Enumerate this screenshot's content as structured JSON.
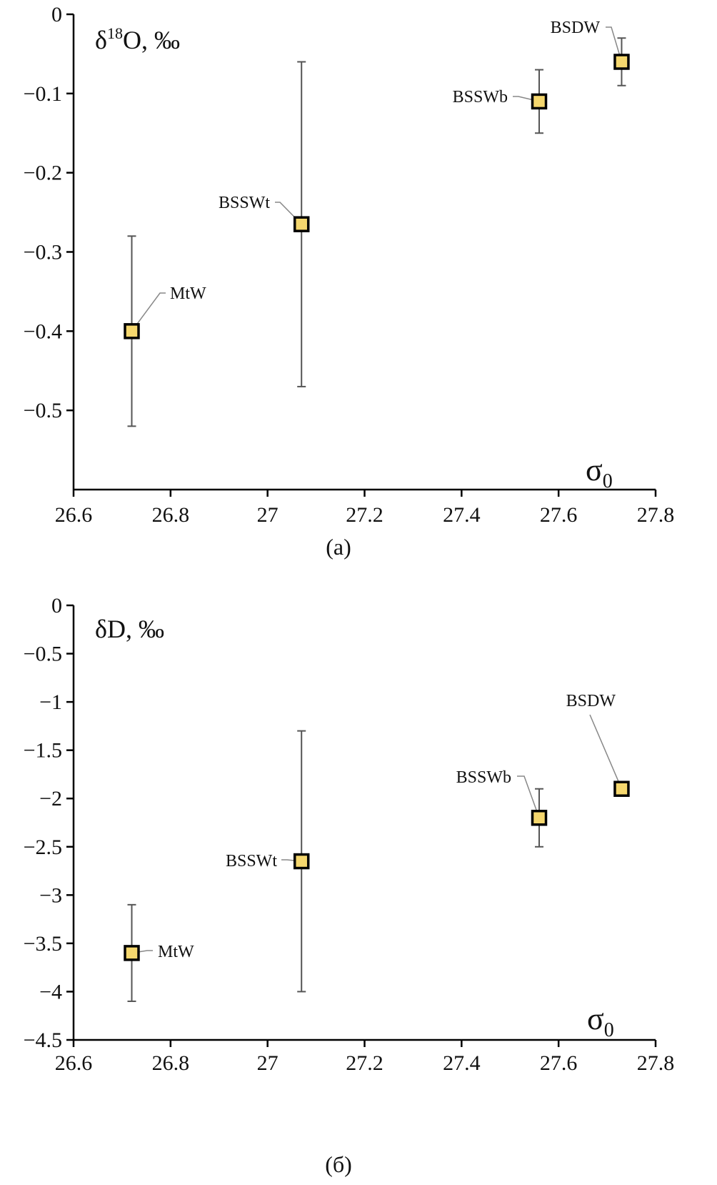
{
  "chart_data": [
    {
      "type": "scatter",
      "caption": "(a)",
      "ylabel_main": "δ",
      "ylabel_sup": "18",
      "ylabel_rest": "O, ‰",
      "xlabel_main": "σ",
      "xlabel_sub": "0",
      "xlim": [
        26.6,
        27.8
      ],
      "ylim": [
        -0.6,
        0
      ],
      "x_ticks": [
        26.6,
        26.8,
        27,
        27.2,
        27.4,
        27.6,
        27.8
      ],
      "x_tick_labels": [
        "26.6",
        "26.8",
        "27",
        "27.2",
        "27.4",
        "27.6",
        "27.8"
      ],
      "y_ticks": [
        0,
        -0.1,
        -0.2,
        -0.3,
        -0.4,
        -0.5
      ],
      "y_tick_labels": [
        "0",
        "−0.1",
        "−0.2",
        "−0.3",
        "−0.4",
        "−0.5"
      ],
      "points": [
        {
          "label": "MtW",
          "x": 26.72,
          "y": -0.4,
          "err_low": -0.52,
          "err_high": -0.28
        },
        {
          "label": "BSSWt",
          "x": 27.07,
          "y": -0.265,
          "err_low": -0.47,
          "err_high": -0.06
        },
        {
          "label": "BSSWb",
          "x": 27.56,
          "y": -0.11,
          "err_low": -0.15,
          "err_high": -0.07
        },
        {
          "label": "BSDW",
          "x": 27.73,
          "y": -0.06,
          "err_low": -0.09,
          "err_high": -0.03
        }
      ]
    },
    {
      "type": "scatter",
      "caption": "(б)",
      "ylabel_main": "δ",
      "ylabel_sup": "",
      "ylabel_rest": "D, ‰",
      "xlabel_main": "σ",
      "xlabel_sub": "0",
      "xlim": [
        26.6,
        27.8
      ],
      "ylim": [
        -4.5,
        0
      ],
      "x_ticks": [
        26.6,
        26.8,
        27,
        27.2,
        27.4,
        27.6,
        27.8
      ],
      "x_tick_labels": [
        "26.6",
        "26.8",
        "27",
        "27.2",
        "27.4",
        "27.6",
        "27.8"
      ],
      "y_ticks": [
        0,
        -0.5,
        -1,
        -1.5,
        -2,
        -2.5,
        -3,
        -3.5,
        -4,
        -4.5
      ],
      "y_tick_labels": [
        "0",
        "−0.5",
        "−1",
        "−1.5",
        "−2",
        "−2.5",
        "−3",
        "−3.5",
        "−4",
        "−4.5"
      ],
      "points": [
        {
          "label": "MtW",
          "x": 26.72,
          "y": -3.6,
          "err_low": -4.1,
          "err_high": -3.1
        },
        {
          "label": "BSSWt",
          "x": 27.07,
          "y": -2.65,
          "err_low": -4.0,
          "err_high": -1.3
        },
        {
          "label": "BSSWb",
          "x": 27.56,
          "y": -2.2,
          "err_low": -2.5,
          "err_high": -1.9
        },
        {
          "label": "BSDW",
          "x": 27.73,
          "y": -1.9,
          "err_low": -1.9,
          "err_high": -1.9
        }
      ]
    }
  ]
}
